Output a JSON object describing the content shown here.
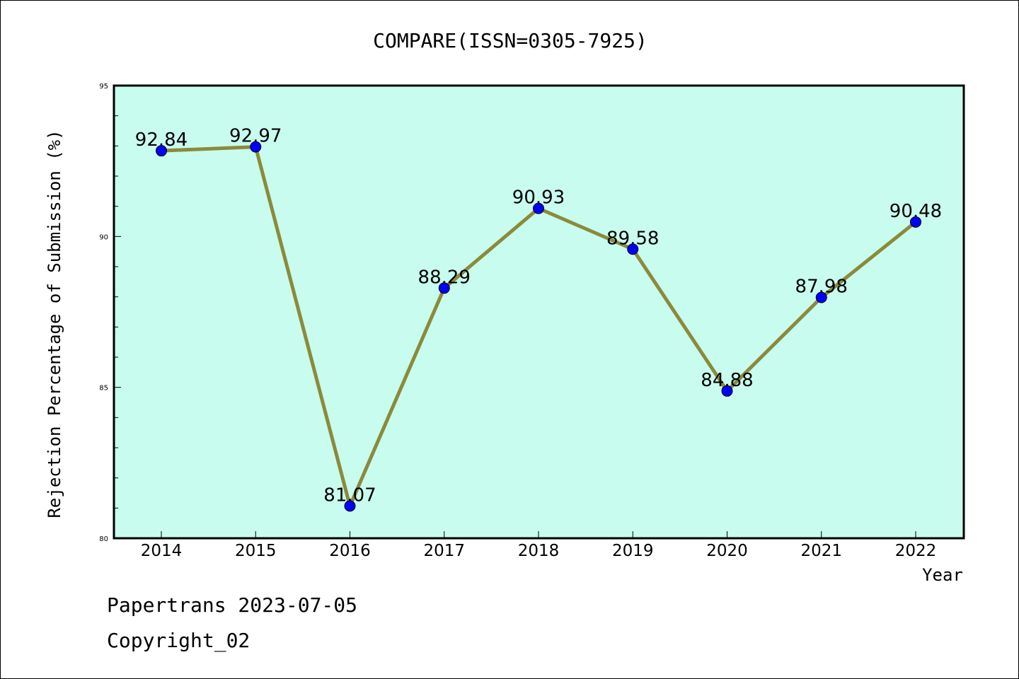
{
  "footer": {
    "line1": "Papertrans 2023-07-05",
    "line2": "Copyright_02"
  },
  "chart_data": {
    "type": "line",
    "title": "COMPARE(ISSN=0305-7925)",
    "xlabel": "Year",
    "ylabel": "Rejection Percentage of Submission (%)",
    "x": [
      "2014",
      "2015",
      "2016",
      "2017",
      "2018",
      "2019",
      "2020",
      "2021",
      "2022"
    ],
    "series": [
      {
        "values": [
          92.84,
          92.97,
          81.07,
          88.29,
          90.93,
          89.58,
          84.88,
          87.98,
          90.48
        ],
        "labels": [
          "92.84",
          "92.97",
          "81.07",
          "88.29",
          "90.93",
          "89.58",
          "84.88",
          "87.98",
          "90.48"
        ]
      }
    ],
    "ylim": [
      80,
      95
    ],
    "yticks": [
      80,
      85,
      90,
      95
    ],
    "yminor_step": 1,
    "grid": false,
    "legend": "none",
    "colors": {
      "plot_background": "#c8fcee",
      "line": "#8c8a3a",
      "marker": "#0000ff",
      "axis": "#000000"
    }
  }
}
